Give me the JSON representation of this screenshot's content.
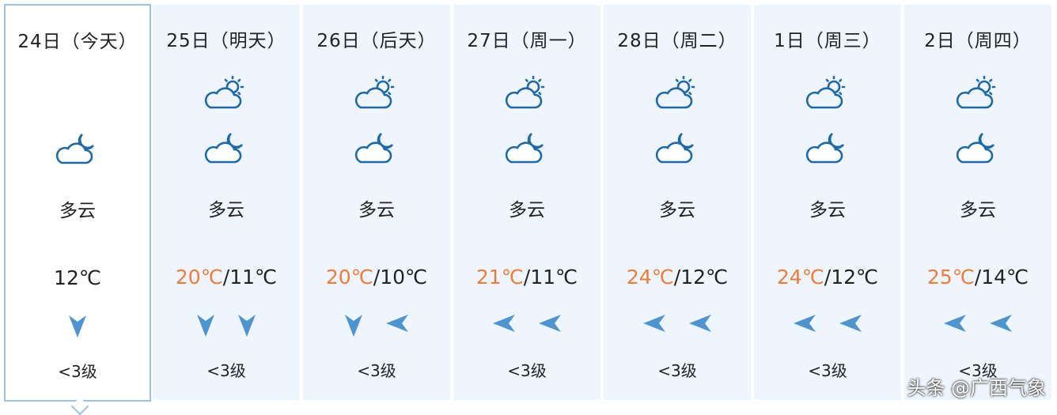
{
  "days": [
    {
      "date": "24日（今天）",
      "day_icon": "",
      "night_icon": "partly-cloudy-night-icon",
      "weather": "多云",
      "high": "",
      "sep": "",
      "low": "12℃",
      "wind": [
        "south-wind-arrow-icon"
      ],
      "level": "<3级",
      "selected": true
    },
    {
      "date": "25日（明天）",
      "day_icon": "partly-cloudy-day-icon",
      "night_icon": "partly-cloudy-night-icon",
      "weather": "多云",
      "high": "20℃",
      "sep": "/",
      "low": "11℃",
      "wind": [
        "south-wind-arrow-icon",
        "south-wind-arrow-icon"
      ],
      "level": "<3级"
    },
    {
      "date": "26日（后天）",
      "day_icon": "partly-cloudy-day-icon",
      "night_icon": "partly-cloudy-night-icon",
      "weather": "多云",
      "high": "20℃",
      "sep": "/",
      "low": "10℃",
      "wind": [
        "south-wind-arrow-icon",
        "east-wind-arrow-icon"
      ],
      "level": "<3级"
    },
    {
      "date": "27日（周一）",
      "day_icon": "partly-cloudy-day-icon",
      "night_icon": "partly-cloudy-night-icon",
      "weather": "多云",
      "high": "21℃",
      "sep": "/",
      "low": "11℃",
      "wind": [
        "east-wind-arrow-icon",
        "east-wind-arrow-icon"
      ],
      "level": "<3级"
    },
    {
      "date": "28日（周二）",
      "day_icon": "partly-cloudy-day-icon",
      "night_icon": "partly-cloudy-night-icon",
      "weather": "多云",
      "high": "24℃",
      "sep": "/",
      "low": "12℃",
      "wind": [
        "east-wind-arrow-icon",
        "east-wind-arrow-icon"
      ],
      "level": "<3级"
    },
    {
      "date": "1日（周三）",
      "day_icon": "partly-cloudy-day-icon",
      "night_icon": "partly-cloudy-night-icon",
      "weather": "多云",
      "high": "24℃",
      "sep": "/",
      "low": "12℃",
      "wind": [
        "east-wind-arrow-icon",
        "east-wind-arrow-icon"
      ],
      "level": "<3级"
    },
    {
      "date": "2日（周四）",
      "day_icon": "partly-cloudy-day-icon",
      "night_icon": "partly-cloudy-night-icon",
      "weather": "多云",
      "high": "25℃",
      "sep": "/",
      "low": "14℃",
      "wind": [
        "east-wind-arrow-icon",
        "east-wind-arrow-icon"
      ],
      "level": "<3级"
    }
  ],
  "watermark": "头条 @广西气象",
  "colors": {
    "high_temp": "#f07b3a",
    "icon": "#1e6aa8",
    "wind_arrow": "#4e95d0",
    "card_bg": "#eef5fc",
    "selected_border": "#9cc2e0"
  }
}
